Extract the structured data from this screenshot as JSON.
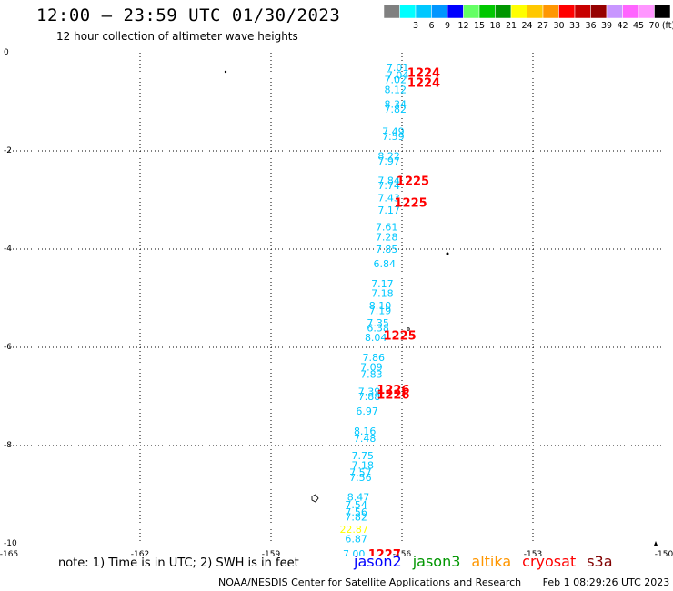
{
  "header": {
    "title": "12:00 – 23:59 UTC 01/30/2023",
    "subtitle": "12 hour collection of altimeter wave heights"
  },
  "legend": {
    "unit_label": "(ft)",
    "bins": [
      {
        "label": "",
        "color": "#808080"
      },
      {
        "label": "3",
        "color": "#00ffff"
      },
      {
        "label": "6",
        "color": "#00c8ff"
      },
      {
        "label": "9",
        "color": "#0096ff"
      },
      {
        "label": "12",
        "color": "#0000ff"
      },
      {
        "label": "15",
        "color": "#64ff64"
      },
      {
        "label": "18",
        "color": "#00c800"
      },
      {
        "label": "21",
        "color": "#009600"
      },
      {
        "label": "24",
        "color": "#ffff00"
      },
      {
        "label": "27",
        "color": "#ffc800"
      },
      {
        "label": "30",
        "color": "#ff9600"
      },
      {
        "label": "33",
        "color": "#ff0000"
      },
      {
        "label": "36",
        "color": "#c80000"
      },
      {
        "label": "39",
        "color": "#960000"
      },
      {
        "label": "42",
        "color": "#c896ff"
      },
      {
        "label": "45",
        "color": "#ff64ff"
      },
      {
        "label": "70",
        "color": "#ff96ff"
      },
      {
        "label": "",
        "color": "#000000"
      }
    ]
  },
  "chart_data": {
    "type": "scatter",
    "title": "12:00 – 23:59 UTC 01/30/2023",
    "xlim": [
      -165,
      -150
    ],
    "ylim": [
      -10,
      0
    ],
    "x_ticks": [
      {
        "value": -165,
        "label": "-165"
      },
      {
        "value": -162,
        "label": "-162"
      },
      {
        "value": -159,
        "label": "-159"
      },
      {
        "value": -156,
        "label": "-156"
      },
      {
        "value": -153,
        "label": "-153"
      },
      {
        "value": -150,
        "label": "-150"
      }
    ],
    "y_ticks": [
      {
        "value": 0,
        "label": "0"
      },
      {
        "value": -2,
        "label": "-2"
      },
      {
        "value": -4,
        "label": "-4"
      },
      {
        "value": -6,
        "label": "-6"
      },
      {
        "value": -8,
        "label": "-8"
      },
      {
        "value": -10,
        "label": "-10"
      }
    ],
    "grid": true,
    "colors": {
      "jason2": "#0000ff",
      "jason3": "#009600",
      "altika": "#ff9600",
      "cryosat": "#ff0000",
      "s3a": "#800000",
      "cyan": "#00c8ff",
      "yellow": "#ffff00",
      "red": "#ff0000"
    },
    "points": [
      {
        "lon": -156.1,
        "lat": -0.3,
        "label": "7.01",
        "color": "#00c8ff"
      },
      {
        "lon": -156.1,
        "lat": -0.45,
        "label": "7.04",
        "color": "#00c8ff"
      },
      {
        "lon": -156.15,
        "lat": -0.55,
        "label": "7.02",
        "color": "#00c8ff"
      },
      {
        "lon": -156.15,
        "lat": -0.75,
        "label": "8.12",
        "color": "#00c8ff"
      },
      {
        "lon": -156.15,
        "lat": -1.05,
        "label": "8.34",
        "color": "#00c8ff"
      },
      {
        "lon": -156.15,
        "lat": -1.15,
        "label": "7.82",
        "color": "#00c8ff"
      },
      {
        "lon": -156.2,
        "lat": -1.6,
        "label": "7.49",
        "color": "#00c8ff"
      },
      {
        "lon": -156.2,
        "lat": -1.7,
        "label": "7.59",
        "color": "#00c8ff"
      },
      {
        "lon": -156.3,
        "lat": -2.1,
        "label": "8.22",
        "color": "#00c8ff"
      },
      {
        "lon": -156.3,
        "lat": -2.2,
        "label": "7.97",
        "color": "#00c8ff"
      },
      {
        "lon": -156.3,
        "lat": -2.6,
        "label": "7.84",
        "color": "#00c8ff"
      },
      {
        "lon": -156.3,
        "lat": -2.7,
        "label": "7.74",
        "color": "#00c8ff"
      },
      {
        "lon": -156.3,
        "lat": -2.95,
        "label": "7.43",
        "color": "#00c8ff"
      },
      {
        "lon": -156.3,
        "lat": -3.2,
        "label": "7.17",
        "color": "#00c8ff"
      },
      {
        "lon": -156.35,
        "lat": -3.55,
        "label": "7.61",
        "color": "#00c8ff"
      },
      {
        "lon": -156.35,
        "lat": -3.75,
        "label": "7.28",
        "color": "#00c8ff"
      },
      {
        "lon": -156.35,
        "lat": -4.0,
        "label": "7.85",
        "color": "#00c8ff"
      },
      {
        "lon": -156.4,
        "lat": -4.3,
        "label": "6.84",
        "color": "#00c8ff"
      },
      {
        "lon": -156.45,
        "lat": -4.7,
        "label": "7.17",
        "color": "#00c8ff"
      },
      {
        "lon": -156.45,
        "lat": -4.9,
        "label": "7.18",
        "color": "#00c8ff"
      },
      {
        "lon": -156.5,
        "lat": -5.15,
        "label": "8.10",
        "color": "#00c8ff"
      },
      {
        "lon": -156.5,
        "lat": -5.25,
        "label": "7.19",
        "color": "#00c8ff"
      },
      {
        "lon": -156.55,
        "lat": -5.5,
        "label": "7.35",
        "color": "#00c8ff"
      },
      {
        "lon": -156.55,
        "lat": -5.6,
        "label": "6.38",
        "color": "#00c8ff"
      },
      {
        "lon": -156.6,
        "lat": -5.8,
        "label": "8.04",
        "color": "#00c8ff"
      },
      {
        "lon": -156.65,
        "lat": -6.2,
        "label": "7.86",
        "color": "#00c8ff"
      },
      {
        "lon": -156.7,
        "lat": -6.4,
        "label": "7.09",
        "color": "#00c8ff"
      },
      {
        "lon": -156.7,
        "lat": -6.55,
        "label": "7.83",
        "color": "#00c8ff"
      },
      {
        "lon": -156.75,
        "lat": -6.9,
        "label": "7.39",
        "color": "#00c8ff"
      },
      {
        "lon": -156.75,
        "lat": -7.0,
        "label": "7.88",
        "color": "#00c8ff"
      },
      {
        "lon": -156.8,
        "lat": -7.3,
        "label": "6.97",
        "color": "#00c8ff"
      },
      {
        "lon": -156.85,
        "lat": -7.7,
        "label": "8.16",
        "color": "#00c8ff"
      },
      {
        "lon": -156.85,
        "lat": -7.85,
        "label": "7.48",
        "color": "#00c8ff"
      },
      {
        "lon": -156.9,
        "lat": -8.2,
        "label": "7.75",
        "color": "#00c8ff"
      },
      {
        "lon": -156.9,
        "lat": -8.4,
        "label": "7.18",
        "color": "#00c8ff"
      },
      {
        "lon": -156.95,
        "lat": -8.55,
        "label": "7.57",
        "color": "#00c8ff"
      },
      {
        "lon": -156.95,
        "lat": -8.65,
        "label": "7.56",
        "color": "#00c8ff"
      },
      {
        "lon": -157.0,
        "lat": -9.05,
        "label": "8.47",
        "color": "#00c8ff"
      },
      {
        "lon": -157.05,
        "lat": -9.2,
        "label": "7.54",
        "color": "#00c8ff"
      },
      {
        "lon": -157.05,
        "lat": -9.35,
        "label": "7.56",
        "color": "#00c8ff"
      },
      {
        "lon": -157.05,
        "lat": -9.45,
        "label": "7.82",
        "color": "#00c8ff"
      },
      {
        "lon": -157.1,
        "lat": -9.7,
        "label": "22.87",
        "color": "#ffff00"
      },
      {
        "lon": -157.05,
        "lat": -9.9,
        "label": "6.87",
        "color": "#00c8ff"
      },
      {
        "lon": -157.1,
        "lat": -10.2,
        "label": "7.00",
        "color": "#00c8ff"
      }
    ],
    "time_labels": [
      {
        "lon": -155.5,
        "lat": -0.4,
        "label": "1224",
        "color": "#ff0000"
      },
      {
        "lon": -155.5,
        "lat": -0.6,
        "label": "1224",
        "color": "#ff0000"
      },
      {
        "lon": -155.75,
        "lat": -2.6,
        "label": "1225",
        "color": "#ff0000"
      },
      {
        "lon": -155.8,
        "lat": -3.05,
        "label": "1225",
        "color": "#ff0000"
      },
      {
        "lon": -156.05,
        "lat": -5.75,
        "label": "1225",
        "color": "#ff0000"
      },
      {
        "lon": -156.2,
        "lat": -6.85,
        "label": "1226",
        "color": "#ff0000"
      },
      {
        "lon": -156.2,
        "lat": -6.95,
        "label": "1226",
        "color": "#ff0000"
      },
      {
        "lon": -156.4,
        "lat": -10.2,
        "label": "1227",
        "color": "#ff0000"
      }
    ]
  },
  "notes": {
    "note_text": "note: 1) Time is in UTC; 2) SWH is in feet"
  },
  "satellites": [
    {
      "name": "jason2",
      "color": "#0000ff"
    },
    {
      "name": "jason3",
      "color": "#009600"
    },
    {
      "name": "altika",
      "color": "#ff9600"
    },
    {
      "name": "cryosat",
      "color": "#ff0000"
    },
    {
      "name": "s3a",
      "color": "#800000"
    }
  ],
  "footer": {
    "credit": "NOAA/NESDIS Center for Satellite Applications and Research",
    "timestamp": "Feb  1 08:29:26 UTC 2023"
  }
}
